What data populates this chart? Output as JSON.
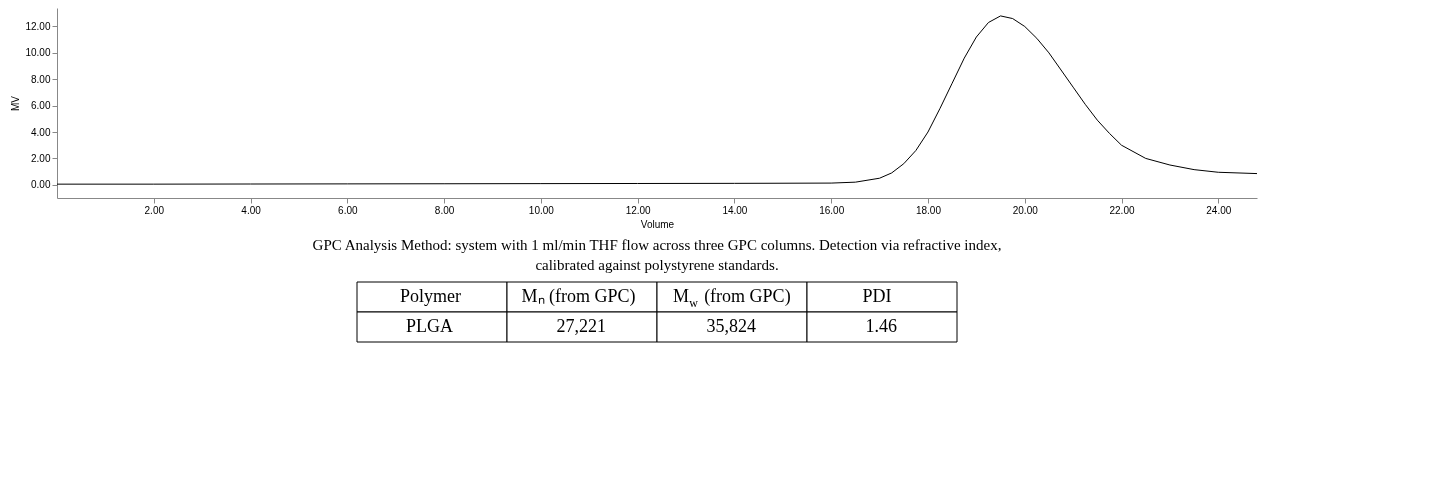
{
  "chart_data": {
    "type": "line",
    "xlabel": "Volume",
    "ylabel": "MV",
    "x": [
      0.0,
      2,
      4,
      6,
      8,
      10,
      12,
      14,
      16,
      16.5,
      17,
      17.25,
      17.5,
      17.75,
      18,
      18.25,
      18.5,
      18.75,
      19,
      19.25,
      19.5,
      19.75,
      20,
      20.25,
      20.5,
      20.75,
      21,
      21.25,
      21.5,
      21.75,
      22,
      22.5,
      23,
      23.5,
      24,
      24.8
    ],
    "series": [
      {
        "color": "#000000",
        "values": [
          0.05,
          0.05,
          0.06,
          0.07,
          0.08,
          0.09,
          0.1,
          0.11,
          0.13,
          0.2,
          0.5,
          0.9,
          1.6,
          2.6,
          4.0,
          5.8,
          7.7,
          9.6,
          11.2,
          12.3,
          12.8,
          12.6,
          12.0,
          11.1,
          10.0,
          8.7,
          7.4,
          6.1,
          4.9,
          3.9,
          3.0,
          2.0,
          1.5,
          1.15,
          0.95,
          0.85
        ]
      }
    ],
    "xlim": [
      0.0,
      24.8
    ],
    "ylim": [
      -1.0,
      13.4
    ],
    "xticks": [
      {
        "value": 2,
        "label": "2.00"
      },
      {
        "value": 4,
        "label": "4.00"
      },
      {
        "value": 6,
        "label": "6.00"
      },
      {
        "value": 8,
        "label": "8.00"
      },
      {
        "value": 10,
        "label": "10.00"
      },
      {
        "value": 12,
        "label": "12.00"
      },
      {
        "value": 14,
        "label": "14.00"
      },
      {
        "value": 16,
        "label": "16.00"
      },
      {
        "value": 18,
        "label": "18.00"
      },
      {
        "value": 20,
        "label": "20.00"
      },
      {
        "value": 22,
        "label": "22.00"
      },
      {
        "value": 24,
        "label": "24.00"
      }
    ],
    "yticks": [
      {
        "value": 0,
        "label": "0.00"
      },
      {
        "value": 2,
        "label": "2.00"
      },
      {
        "value": 4,
        "label": "4.00"
      },
      {
        "value": 6,
        "label": "6.00"
      },
      {
        "value": 8,
        "label": "8.00"
      },
      {
        "value": 10,
        "label": "10.00"
      },
      {
        "value": 12,
        "label": "12.00"
      }
    ],
    "grid": false,
    "marker": "none",
    "line_style": "solid",
    "annotations": [
      "GPC Analysis Method: system with 1 ml/min THF flow across three GPC columns. Detection via refractive index, calibrated against polystyrene standards.",
      "Polymer",
      "Mₙ (from GPC)",
      "M$_{w}$ (from GPC)",
      "PDI",
      "PLGA",
      "27,221",
      "35,824",
      "1.46"
    ]
  }
}
